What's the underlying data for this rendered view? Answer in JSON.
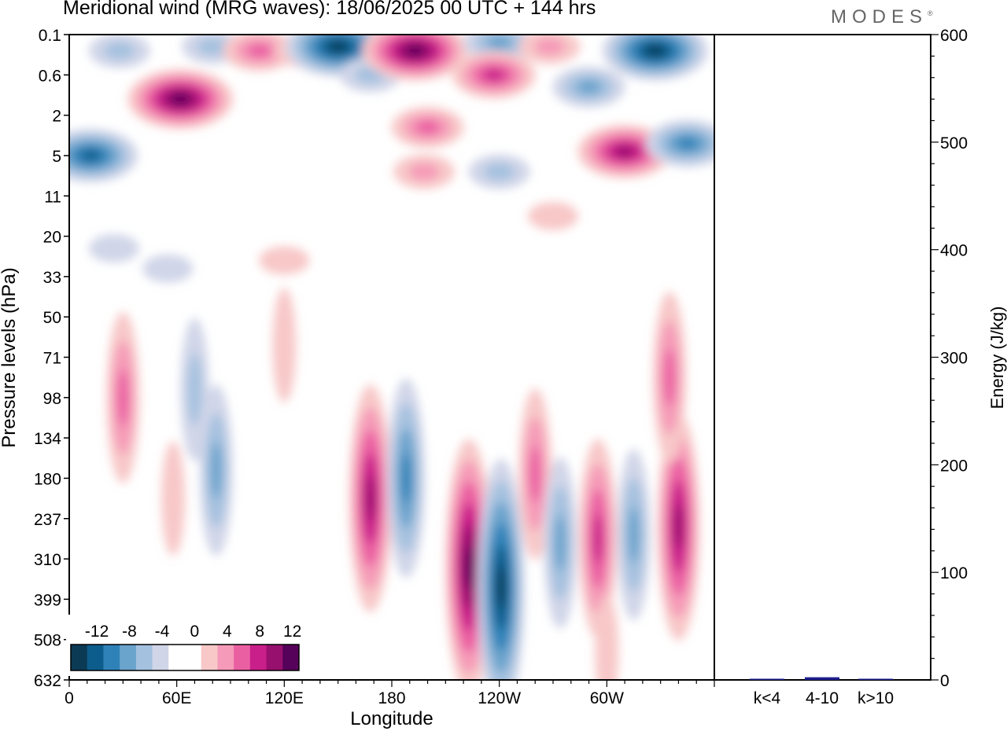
{
  "header": {
    "title": "Meridional wind (MRG waves):  18/06/2025  00 UTC  + 144 hrs",
    "brand": "MODES",
    "brand_mark": "®"
  },
  "colors": {
    "negative": [
      "#0b3a55",
      "#0d5d8c",
      "#2f82b8",
      "#6aa3cc",
      "#a4c1df",
      "#d0d5e8"
    ],
    "positive": [
      "#f8c8c8",
      "#f59ab8",
      "#ea5fa2",
      "#c91f8a",
      "#98106e",
      "#56025a"
    ],
    "energy_bar": "#1f1f8c"
  },
  "chart_data": [
    {
      "type": "heatmap",
      "title": "Meridional wind (MRG waves):  18/06/2025  00 UTC  + 144 hrs",
      "xlabel": "Longitude",
      "ylabel": "Pressure levels (hPa)",
      "x_ticks": [
        "0",
        "60E",
        "120E",
        "180",
        "120W",
        "60W"
      ],
      "y_ticks": [
        "0.1",
        "0.6",
        "2",
        "5",
        "11",
        "20",
        "33",
        "50",
        "71",
        "98",
        "134",
        "180",
        "237",
        "310",
        "399",
        "508",
        "632"
      ],
      "colorbar": {
        "labels": [
          "-12",
          "-8",
          "-4",
          "0",
          "4",
          "8",
          "12"
        ],
        "levels": [
          -14,
          -12,
          -10,
          -8,
          -6,
          -4,
          -2,
          2,
          4,
          6,
          8,
          10,
          12,
          14
        ]
      },
      "features": [
        {
          "lon": 12,
          "level": 3.0,
          "value": -11
        },
        {
          "lon": 28,
          "level": 0.4,
          "value": -5
        },
        {
          "lon": 62,
          "level": 1.6,
          "value": 14
        },
        {
          "lon": 80,
          "level": 0.3,
          "value": -4
        },
        {
          "lon": 106,
          "level": 0.4,
          "value": 8
        },
        {
          "lon": 132,
          "level": 0.4,
          "value": 5
        },
        {
          "lon": 150,
          "level": 0.3,
          "value": -14
        },
        {
          "lon": 168,
          "level": 1.0,
          "value": -5
        },
        {
          "lon": 193,
          "level": 0.4,
          "value": 14
        },
        {
          "lon": 240,
          "level": 0.2,
          "value": -8
        },
        {
          "lon": 237,
          "level": 1.0,
          "value": 10
        },
        {
          "lon": 268,
          "level": 0.3,
          "value": 5
        },
        {
          "lon": 290,
          "level": 1.3,
          "value": -6
        },
        {
          "lon": 327,
          "level": 0.4,
          "value": -13
        },
        {
          "lon": 200,
          "level": 2.3,
          "value": 7
        },
        {
          "lon": 198,
          "level": 3.4,
          "value": 4
        },
        {
          "lon": 240,
          "level": 3.4,
          "value": -4
        },
        {
          "lon": 310,
          "level": 2.9,
          "value": 12
        },
        {
          "lon": 345,
          "level": 2.7,
          "value": -9
        },
        {
          "lon": 25,
          "level": 5.3,
          "value": -3
        },
        {
          "lon": 55,
          "level": 5.8,
          "value": -3
        },
        {
          "lon": 120,
          "level": 5.6,
          "value": 3
        },
        {
          "lon": 270,
          "level": 4.5,
          "value": 3
        },
        {
          "lon": 120,
          "level": 7.7,
          "value": 3
        },
        {
          "lon": 30,
          "level": 9.0,
          "value": 6
        },
        {
          "lon": 70,
          "level": 8.8,
          "value": -4
        },
        {
          "lon": 82,
          "level": 10.8,
          "value": -7
        },
        {
          "lon": 58,
          "level": 11.5,
          "value": 3
        },
        {
          "lon": 168,
          "level": 11.5,
          "value": 12
        },
        {
          "lon": 188,
          "level": 11.0,
          "value": -9
        },
        {
          "lon": 223,
          "level": 13.2,
          "value": 14
        },
        {
          "lon": 241,
          "level": 13.7,
          "value": -15
        },
        {
          "lon": 260,
          "level": 10.9,
          "value": 7
        },
        {
          "lon": 274,
          "level": 12.6,
          "value": -7
        },
        {
          "lon": 295,
          "level": 12.5,
          "value": 9
        },
        {
          "lon": 315,
          "level": 12.4,
          "value": -6
        },
        {
          "lon": 340,
          "level": 12.2,
          "value": 12
        },
        {
          "lon": 335,
          "level": 8.5,
          "value": 6
        },
        {
          "lon": 300,
          "level": 15.3,
          "value": 3
        }
      ]
    },
    {
      "type": "bar",
      "ylabel": "Energy (J/kg)",
      "ylim": [
        0,
        600
      ],
      "y_ticks": [
        "0",
        "100",
        "200",
        "300",
        "400",
        "500",
        "600"
      ],
      "categories": [
        "k<4",
        "4-10",
        "k>10"
      ],
      "values": [
        0.4,
        2.5,
        0.3
      ]
    }
  ]
}
